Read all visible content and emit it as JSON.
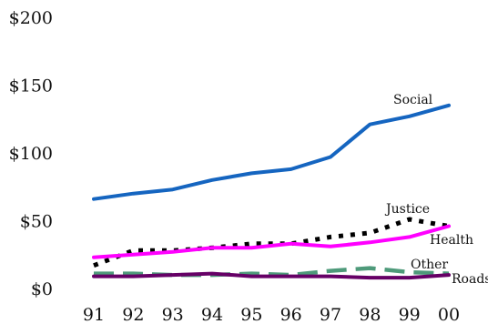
{
  "chart_data": {
    "type": "line",
    "title": "",
    "xlabel": "",
    "ylabel": "",
    "x": [
      "91",
      "92",
      "93",
      "94",
      "95",
      "96",
      "97",
      "98",
      "99",
      "00"
    ],
    "ylim": [
      0,
      200
    ],
    "yticks": [
      0,
      50,
      100,
      150,
      200
    ],
    "ytick_labels": [
      "$0",
      "$50",
      "$100",
      "$150",
      "$200"
    ],
    "grid": false,
    "series": [
      {
        "name": "Social",
        "color": "#1565C0",
        "line_style": "solid",
        "values": [
          66,
          70,
          73,
          80,
          85,
          88,
          97,
          121,
          127,
          135
        ]
      },
      {
        "name": "Justice",
        "color": "#000000",
        "line_style": "dotted",
        "values": [
          17,
          28,
          28,
          30,
          33,
          33,
          38,
          41,
          51,
          46
        ]
      },
      {
        "name": "Health",
        "color": "#FF00FF",
        "line_style": "solid",
        "values": [
          23,
          25,
          27,
          30,
          30,
          33,
          31,
          34,
          38,
          46
        ]
      },
      {
        "name": "Other",
        "color": "#4E9A7A",
        "line_style": "dashed",
        "values": [
          11,
          11,
          10,
          10,
          11,
          10,
          13,
          15,
          12,
          11
        ]
      },
      {
        "name": "Roads",
        "color": "#660066",
        "line_style": "solid",
        "values": [
          9,
          9,
          10,
          11,
          9,
          9,
          9,
          8,
          8,
          10
        ]
      }
    ]
  }
}
